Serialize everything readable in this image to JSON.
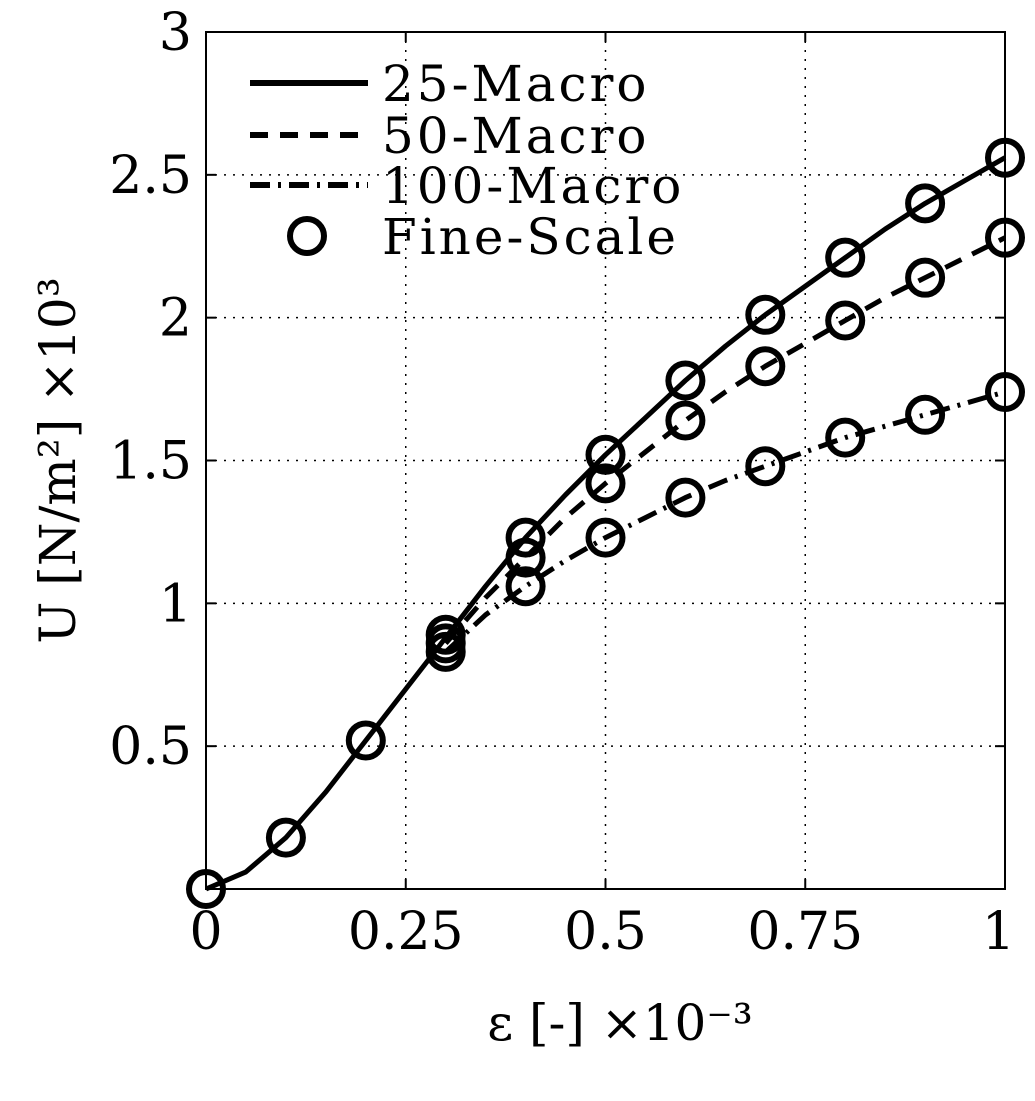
{
  "chart_data": {
    "type": "line",
    "xlabel": "ε [-] ×10⁻³",
    "ylabel": "U [N/m²] ×10³",
    "xlim": [
      0,
      1
    ],
    "ylim": [
      0,
      3
    ],
    "xticks": [
      "0",
      "0.25",
      "0.5",
      "0.75",
      "1"
    ],
    "xtick_values": [
      0,
      0.25,
      0.5,
      0.75,
      1
    ],
    "yticks": [
      "0.5",
      "1",
      "1.5",
      "2",
      "2.5",
      "3"
    ],
    "ytick_values": [
      0.5,
      1,
      1.5,
      2,
      2.5,
      3
    ],
    "grid": true,
    "legend_position": "top-left",
    "series": [
      {
        "name": "25-Macro",
        "style": "solid",
        "x": [
          0,
          0.05,
          0.1,
          0.15,
          0.2,
          0.25,
          0.3,
          0.35,
          0.4,
          0.45,
          0.5,
          0.55,
          0.6,
          0.65,
          0.7,
          0.75,
          0.8,
          0.85,
          0.9,
          0.95,
          1.0
        ],
        "y": [
          0,
          0.06,
          0.18,
          0.34,
          0.52,
          0.7,
          0.88,
          1.06,
          1.23,
          1.38,
          1.52,
          1.65,
          1.78,
          1.9,
          2.01,
          2.11,
          2.21,
          2.31,
          2.4,
          2.48,
          2.56
        ]
      },
      {
        "name": "50-Macro",
        "style": "dashed",
        "x": [
          0.3,
          0.35,
          0.4,
          0.45,
          0.5,
          0.55,
          0.6,
          0.65,
          0.7,
          0.75,
          0.8,
          0.85,
          0.9,
          0.95,
          1.0
        ],
        "y": [
          0.86,
          1.02,
          1.16,
          1.3,
          1.42,
          1.53,
          1.64,
          1.74,
          1.83,
          1.91,
          1.99,
          2.07,
          2.14,
          2.21,
          2.28
        ]
      },
      {
        "name": "100-Macro",
        "style": "dashdot",
        "x": [
          0.3,
          0.35,
          0.4,
          0.45,
          0.5,
          0.55,
          0.6,
          0.65,
          0.7,
          0.75,
          0.8,
          0.85,
          0.9,
          0.95,
          1.0
        ],
        "y": [
          0.83,
          0.96,
          1.06,
          1.15,
          1.23,
          1.3,
          1.37,
          1.43,
          1.48,
          1.53,
          1.58,
          1.62,
          1.66,
          1.7,
          1.74
        ]
      },
      {
        "name": "Fine-Scale",
        "style": "markers",
        "x": [
          0,
          0.1,
          0.2,
          0.3,
          0.3,
          0.3,
          0.4,
          0.4,
          0.4,
          0.5,
          0.5,
          0.5,
          0.6,
          0.6,
          0.6,
          0.7,
          0.7,
          0.7,
          0.8,
          0.8,
          0.8,
          0.9,
          0.9,
          0.9,
          1.0,
          1.0,
          1.0
        ],
        "y": [
          0,
          0.18,
          0.52,
          0.89,
          0.86,
          0.83,
          1.23,
          1.16,
          1.06,
          1.52,
          1.42,
          1.23,
          1.78,
          1.64,
          1.37,
          2.01,
          1.83,
          1.48,
          2.21,
          1.99,
          1.58,
          2.4,
          2.14,
          1.66,
          2.56,
          2.28,
          1.74
        ]
      }
    ]
  }
}
